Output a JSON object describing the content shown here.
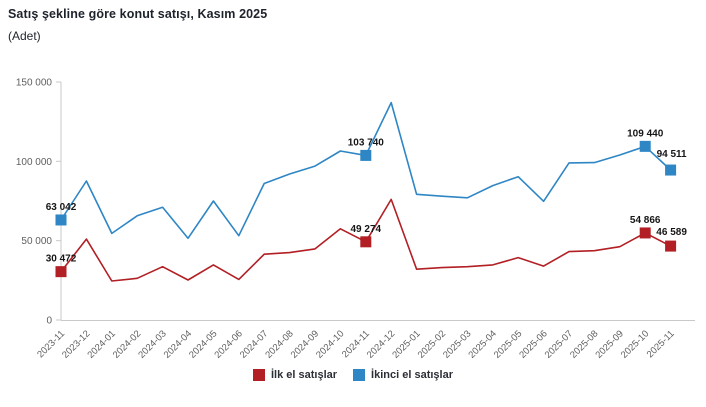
{
  "header": {
    "title": "Satış şekline göre konut satışı, Kasım 2025",
    "subtitle": "(Adet)"
  },
  "legend": {
    "items": [
      {
        "label": "İlk el satışlar",
        "color": "#b21f24"
      },
      {
        "label": "İkinci el satışlar",
        "color": "#2e86c5"
      }
    ]
  },
  "colors": {
    "axis_line": "#c9c9c9",
    "axis_text": "#5f5f5f",
    "data_label": "#161616",
    "background": "#ffffff"
  },
  "chart_data": {
    "type": "line",
    "title": "Satış şekline göre konut satışı, Kasım 2025",
    "xlabel": "",
    "ylabel": "(Adet)",
    "ylim": [
      0,
      150000
    ],
    "grid": false,
    "legend_position": "bottom",
    "x": [
      "2023-11",
      "2023-12",
      "2024-01",
      "2024-02",
      "2024-03",
      "2024-04",
      "2024-05",
      "2024-06",
      "2024-07",
      "2024-08",
      "2024-09",
      "2024-10",
      "2024-11",
      "2024-12",
      "2025-01",
      "2025-02",
      "2025-03",
      "2025-04",
      "2025-05",
      "2025-06",
      "2025-07",
      "2025-08",
      "2025-09",
      "2025-10",
      "2025-11"
    ],
    "yticks": [
      {
        "value": 0,
        "label": "0"
      },
      {
        "value": 50000,
        "label": "50 000"
      },
      {
        "value": 100000,
        "label": "100 000"
      },
      {
        "value": 150000,
        "label": "150 000"
      }
    ],
    "series": [
      {
        "name": "İlk el satışlar",
        "color": "#b21f24",
        "values": [
          30472,
          51000,
          24600,
          26300,
          33600,
          25200,
          34700,
          25600,
          41500,
          42500,
          44800,
          57500,
          49274,
          76000,
          32000,
          33000,
          33600,
          34700,
          39300,
          34000,
          43100,
          43700,
          46200,
          54866,
          46589
        ],
        "labeled_indices": [
          0,
          12,
          23,
          24
        ]
      },
      {
        "name": "İkinci el satışlar",
        "color": "#2e86c5",
        "values": [
          63042,
          87600,
          54600,
          65700,
          71000,
          51500,
          75000,
          53100,
          86000,
          92000,
          97000,
          106500,
          103740,
          137000,
          79200,
          78000,
          77000,
          84700,
          90300,
          74800,
          99000,
          99200,
          104000,
          109440,
          94511
        ],
        "labeled_indices": [
          0,
          12,
          23,
          24
        ]
      }
    ]
  }
}
